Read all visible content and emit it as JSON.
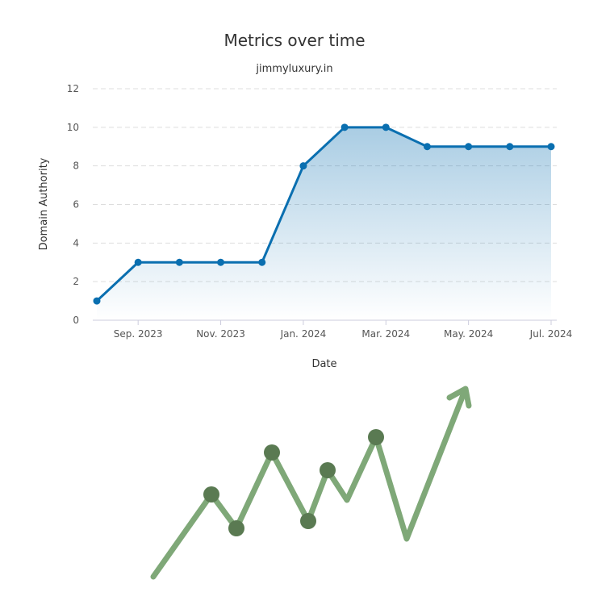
{
  "chart_data": {
    "type": "line",
    "title": "Metrics over time",
    "subtitle": "jimmyluxury.in",
    "x_label": "Date",
    "y_label": "Domain Authority",
    "categories": [
      null,
      "Sep. 2023",
      null,
      "Nov. 2023",
      null,
      "Jan. 2024",
      null,
      "Mar. 2024",
      null,
      "May. 2024",
      null,
      "Jul. 2024"
    ],
    "series": [
      {
        "name": "Domain Authority",
        "color": "#0a6fb0",
        "values": [
          1,
          3,
          3,
          3,
          3,
          8,
          10,
          10,
          9,
          9,
          9,
          9
        ]
      }
    ],
    "ylim": [
      0,
      12
    ],
    "yticks": [
      0,
      2,
      4,
      6,
      8,
      10,
      12
    ],
    "grid": true,
    "area": true
  }
}
